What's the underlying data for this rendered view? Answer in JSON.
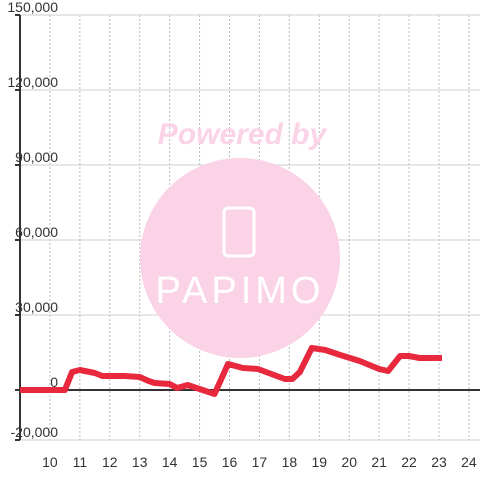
{
  "chart_data": {
    "type": "line",
    "x": [
      9,
      10.5,
      10.74,
      11.0,
      11.5,
      11.75,
      12.5,
      13.0,
      13.3,
      13.5,
      14.0,
      14.25,
      14.6,
      15.0,
      15.5,
      15.95,
      16.45,
      16.95,
      17.4,
      17.85,
      18.1,
      18.35,
      18.75,
      19.2,
      19.7,
      20.35,
      21.0,
      21.3,
      21.7,
      22.0,
      22.35,
      23.1
    ],
    "series": [
      {
        "color": "#e8283c",
        "values": [
          0,
          0,
          7200,
          8000,
          6800,
          5600,
          5600,
          5200,
          3600,
          2800,
          2400,
          800,
          2000,
          400,
          -1600,
          10400,
          8800,
          8400,
          6400,
          4400,
          4400,
          7200,
          16800,
          16000,
          14000,
          11600,
          8400,
          7600,
          13600,
          13600,
          12800,
          12800
        ]
      }
    ],
    "xlim": [
      9,
      24.37
    ],
    "xticks": [
      10,
      11,
      12,
      13,
      14,
      15,
      16,
      17,
      18,
      19,
      20,
      21,
      22,
      23,
      24
    ],
    "ylim": [
      -20000,
      150000
    ],
    "yticks": [
      {
        "value": -20000,
        "label": "-20,000"
      },
      0,
      {
        "value": 30000,
        "label": "30,000"
      },
      {
        "value": 60000,
        "label": "60,000"
      },
      {
        "value": 90000,
        "label": "90,000"
      },
      {
        "value": 120000,
        "label": "120,000"
      },
      {
        "value": 150000,
        "label": "150,000"
      }
    ],
    "grid": true
  },
  "watermark": {
    "line1": "Powered by",
    "line2": "PAPIMO"
  }
}
